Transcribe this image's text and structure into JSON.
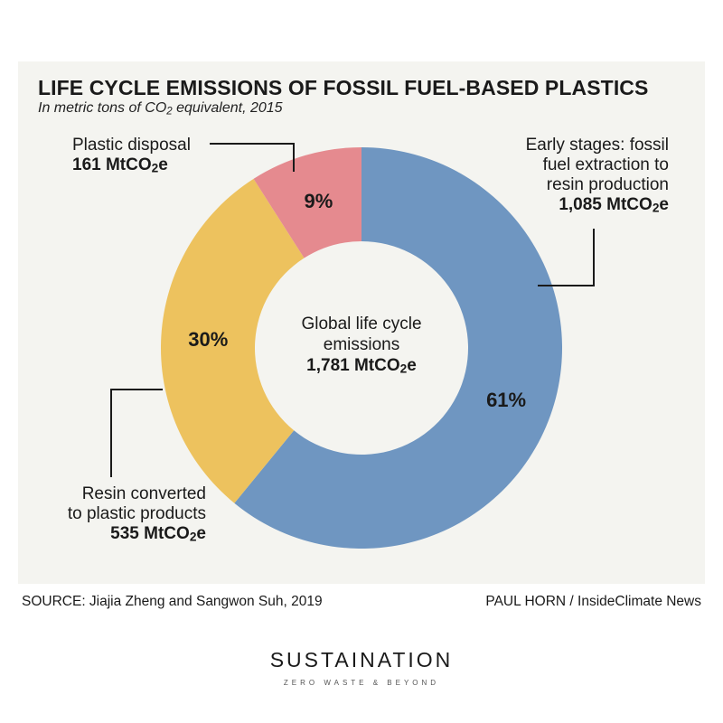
{
  "chart_data": {
    "type": "pie",
    "variant": "donut",
    "title": "LIFE CYCLE EMISSIONS OF FOSSIL FUEL-BASED PLASTICS",
    "subtitle_prefix": "In metric tons of CO",
    "subtitle_sub": "2",
    "subtitle_suffix": " equivalent, 2015",
    "unit_prefix": "MtCO",
    "unit_sub": "2",
    "unit_suffix": "e",
    "center": {
      "label_line1": "Global life cycle",
      "label_line2": "emissions",
      "value": "1,781"
    },
    "slices": [
      {
        "key": "early",
        "label_lines": [
          "Early stages: fossil",
          "fuel extraction to",
          "resin production"
        ],
        "value": 1085,
        "value_text": "1,085",
        "percent": 61,
        "percent_label": "61%",
        "color": "#6f96c1"
      },
      {
        "key": "resin",
        "label_lines": [
          "Resin converted",
          "to plastic products"
        ],
        "value": 535,
        "value_text": "535",
        "percent": 30,
        "percent_label": "30%",
        "color": "#edc25e"
      },
      {
        "key": "disposal",
        "label_lines": [
          "Plastic disposal"
        ],
        "value": 161,
        "value_text": "161",
        "percent": 9,
        "percent_label": "9%",
        "color": "#e58a8f"
      }
    ]
  },
  "footer": {
    "source": "SOURCE: Jiajia Zheng and Sangwon Suh, 2019",
    "credit": "PAUL HORN / InsideClimate News"
  },
  "branding": {
    "logo": "SUSTAINATION",
    "tagline": "ZERO WASTE & BEYOND"
  }
}
